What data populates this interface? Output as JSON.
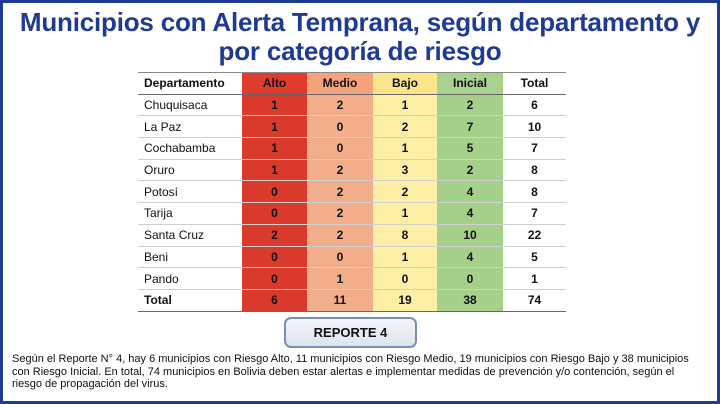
{
  "title": "Municipios con Alerta Temprana, según departamento y por categoría de riesgo",
  "table": {
    "headers": [
      "Departamento",
      "Alto",
      "Medio",
      "Bajo",
      "Inicial",
      "Total"
    ],
    "rows": [
      [
        "Chuquisaca",
        "1",
        "2",
        "1",
        "2",
        "6"
      ],
      [
        "La Paz",
        "1",
        "0",
        "2",
        "7",
        "10"
      ],
      [
        "Cochabamba",
        "1",
        "0",
        "1",
        "5",
        "7"
      ],
      [
        "Oruro",
        "1",
        "2",
        "3",
        "2",
        "8"
      ],
      [
        "Potosí",
        "0",
        "2",
        "2",
        "4",
        "8"
      ],
      [
        "Tarija",
        "0",
        "2",
        "1",
        "4",
        "7"
      ],
      [
        "Santa Cruz",
        "2",
        "2",
        "8",
        "10",
        "22"
      ],
      [
        "Beni",
        "0",
        "0",
        "1",
        "4",
        "5"
      ],
      [
        "Pando",
        "0",
        "1",
        "0",
        "0",
        "1"
      ],
      [
        "Total",
        "6",
        "11",
        "19",
        "38",
        "74"
      ]
    ]
  },
  "report_button": "REPORTE 4",
  "description": "Según el Reporte N° 4, hay 6 municipios con Riesgo Alto, 11 municipios con Riesgo Medio, 19 municipios con Riesgo Bajo y 38 municipios con Riesgo Inicial. En total, 74 municipios en Bolivia deben estar alertas e implementar medidas de prevención y/o contención, según el riesgo de propagación del virus.",
  "colors": {
    "title": "#1f3a93",
    "alto": "#d93a2b",
    "medio": "#f2ae8a",
    "bajo": "#fdeea6",
    "inicial": "#a4d08a"
  }
}
